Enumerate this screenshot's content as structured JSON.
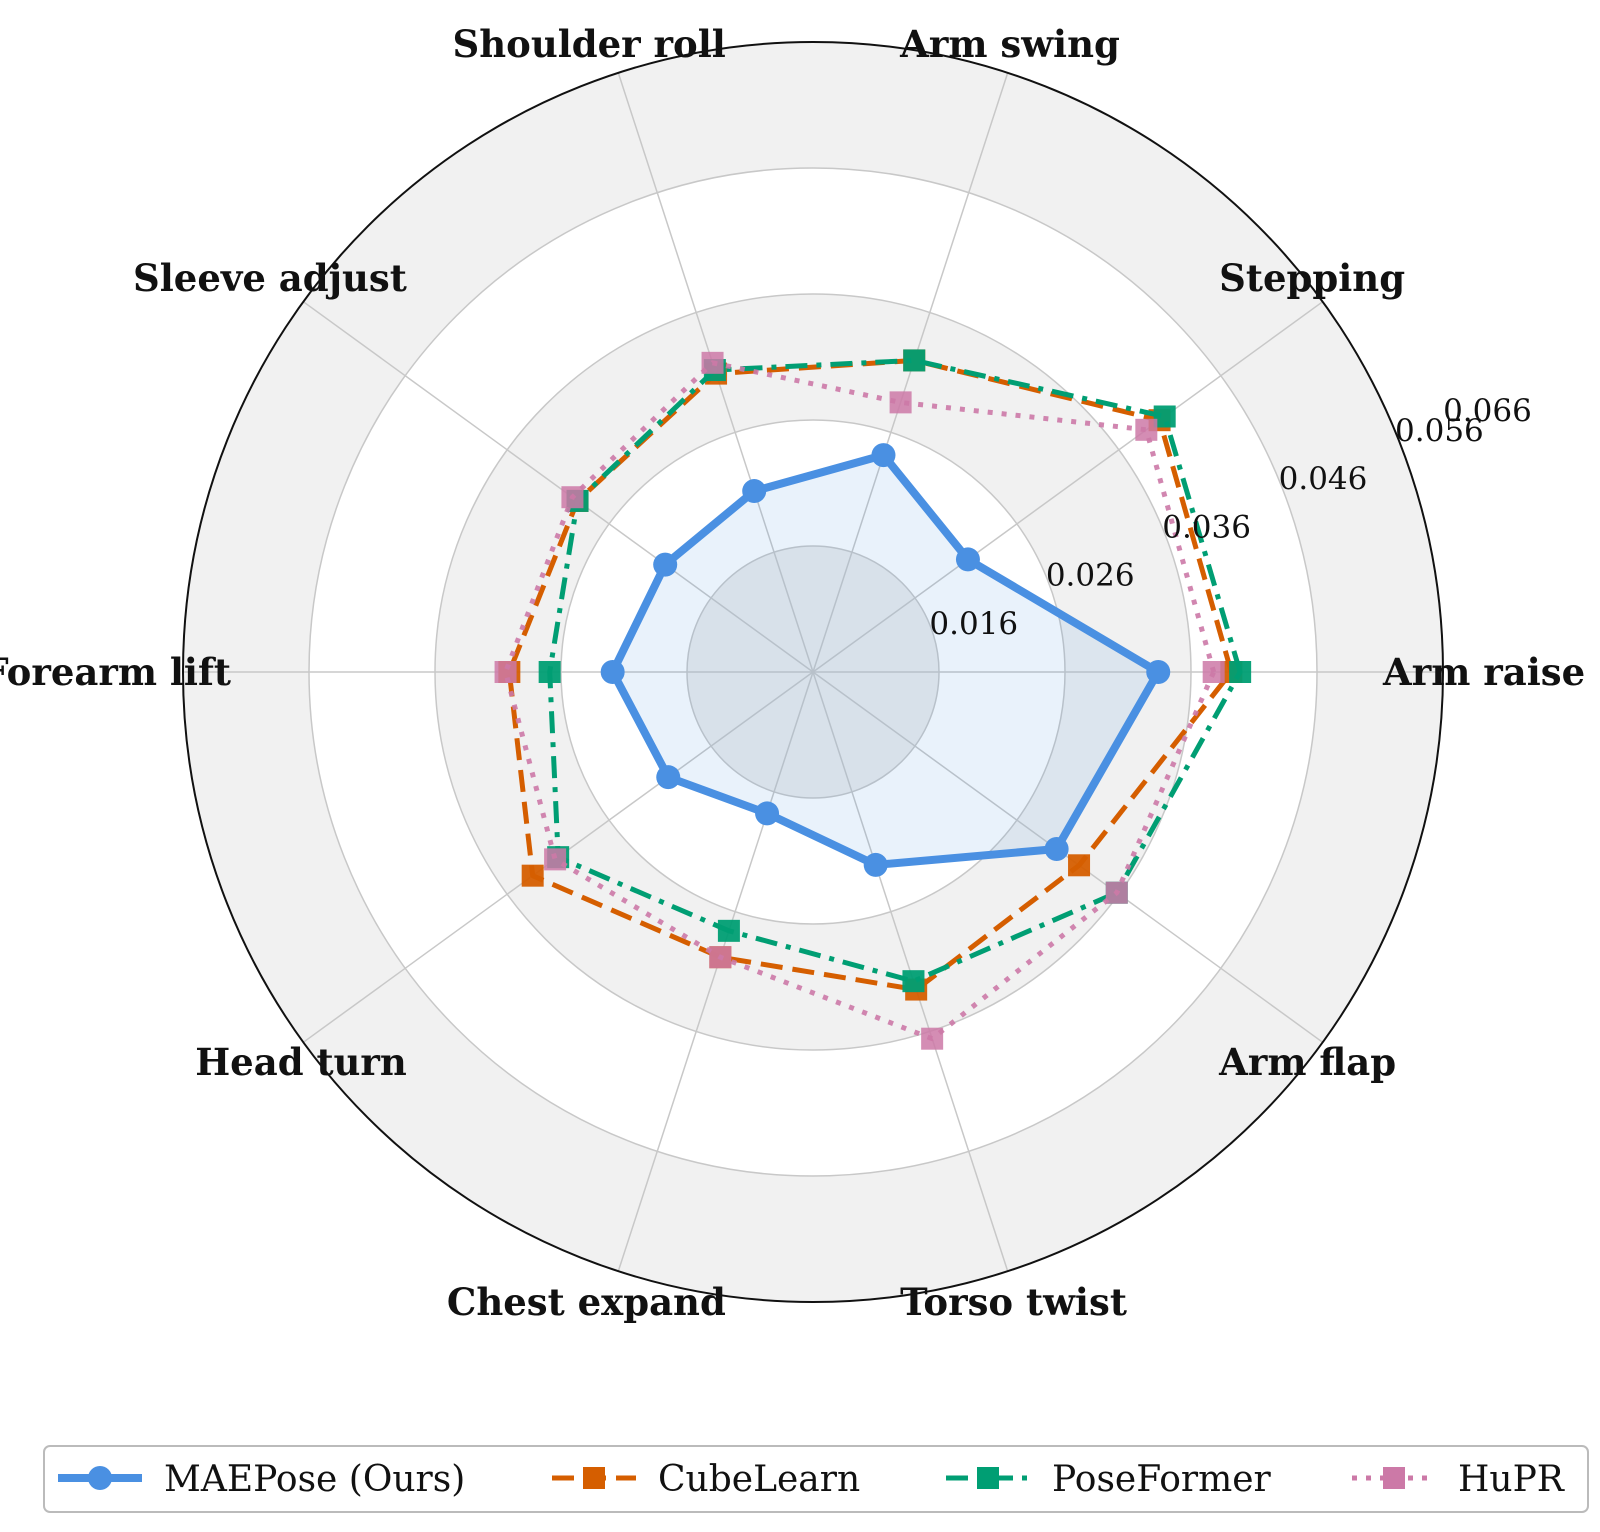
{
  "chart_data": {
    "type": "radar",
    "title": "",
    "categories": [
      "Arm raise",
      "Stepping",
      "Arm swing",
      "Shoulder roll",
      "Sleeve adjust",
      "Forearm lift",
      "Head turn",
      "Chest expand",
      "Torso twist",
      "Arm flap"
    ],
    "rlim": [
      0.006,
      0.056
    ],
    "rticks": [
      0.016,
      0.026,
      0.036,
      0.046,
      0.056,
      0.066
    ],
    "rtick_labels": [
      "0.016",
      "0.026",
      "0.036",
      "0.046",
      "0.056",
      "0.066"
    ],
    "grid": true,
    "legend_position": "bottom",
    "series": [
      {
        "name": "MAEPose (Ours)",
        "values": [
          0.0334,
          0.0212,
          0.0241,
          0.0211,
          0.0205,
          0.0219,
          0.0202,
          0.0178,
          0.0221,
          0.0299
        ],
        "color": "#4a90e2",
        "marker": "circle",
        "dash": "solid",
        "fill": true
      },
      {
        "name": "CubeLearn",
        "values": [
          0.0392,
          0.04,
          0.032,
          0.0309,
          0.0291,
          0.0301,
          0.0335,
          0.0298,
          0.0325,
          0.0321
        ],
        "color": "#d55e00",
        "marker": "square",
        "dash": "dashed",
        "fill": false
      },
      {
        "name": "PoseFormer",
        "values": [
          0.0399,
          0.0405,
          0.032,
          0.0312,
          0.0291,
          0.0269,
          0.031,
          0.0276,
          0.0318,
          0.0358
        ],
        "color": "#009e73",
        "marker": "square",
        "dash": "dashdot",
        "fill": false
      },
      {
        "name": "HuPR",
        "values": [
          0.0378,
          0.0387,
          0.0285,
          0.0318,
          0.0296,
          0.0304,
          0.0313,
          0.0298,
          0.0366,
          0.0358
        ],
        "color": "#cc79a7",
        "marker": "square",
        "dash": "dotted",
        "fill": false
      }
    ]
  }
}
